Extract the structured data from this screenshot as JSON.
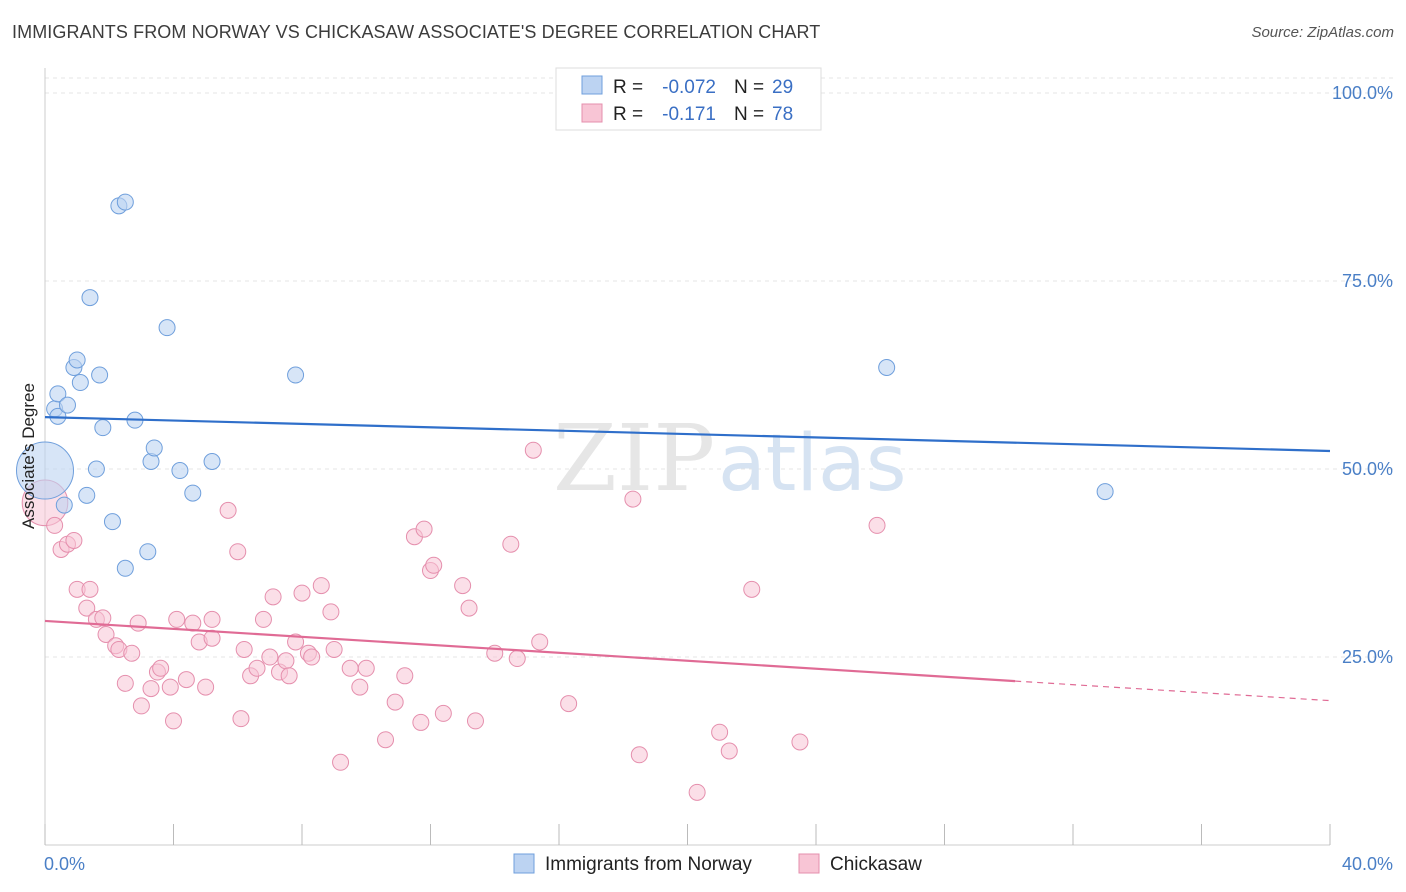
{
  "title": "IMMIGRANTS FROM NORWAY VS CHICKASAW ASSOCIATE'S DEGREE CORRELATION CHART",
  "source": "Source: ZipAtlas.com",
  "colors": {
    "norway_fill": "#bcd3f2",
    "norway_stroke": "#6f9fdc",
    "norway_line": "#2f6fca",
    "chickasaw_fill": "#f8c5d5",
    "chickasaw_stroke": "#e58fad",
    "chickasaw_line": "#e06b95",
    "tick_text": "#4a7fc6",
    "grid": "#e4e4e4"
  },
  "legend": {
    "rows": [
      {
        "r_label": "R =",
        "r_value": "-0.072",
        "n_label": "N =",
        "n_value": "29"
      },
      {
        "r_label": "R =",
        "r_value": "-0.171",
        "n_label": "N =",
        "n_value": "78"
      }
    ]
  },
  "watermark": {
    "zip": "ZIP",
    "atlas": "atlas"
  },
  "chart_data": {
    "type": "scatter",
    "xlabel": "",
    "ylabel": "Associate's Degree",
    "xlim": [
      0,
      40
    ],
    "ylim": [
      0,
      102
    ],
    "x_tick_labels": [
      "0.0%",
      "40.0%"
    ],
    "y_ticks": [
      {
        "value": 25,
        "label": "25.0%"
      },
      {
        "value": 50,
        "label": "50.0%"
      },
      {
        "value": 75,
        "label": "75.0%"
      },
      {
        "value": 100,
        "label": "100.0%"
      }
    ],
    "grid": true,
    "legend_position": "top-center",
    "series": [
      {
        "name": "Immigrants from Norway",
        "trend": {
          "x0": 0,
          "y0": 56.9,
          "x1": 40,
          "y1": 52.4,
          "dashed_from": null
        },
        "points": [
          [
            0.0,
            49.8,
            30
          ],
          [
            0.3,
            58.0,
            10
          ],
          [
            0.4,
            57.0,
            10
          ],
          [
            0.4,
            60.0,
            10
          ],
          [
            0.7,
            58.5,
            10
          ],
          [
            0.6,
            45.2,
            10
          ],
          [
            0.9,
            63.5,
            10
          ],
          [
            1.0,
            64.5,
            10
          ],
          [
            1.1,
            61.5,
            10
          ],
          [
            1.3,
            46.5,
            10
          ],
          [
            1.4,
            72.8,
            10
          ],
          [
            1.6,
            50.0,
            10
          ],
          [
            1.7,
            62.5,
            10
          ],
          [
            1.8,
            55.5,
            10
          ],
          [
            2.1,
            43.0,
            10
          ],
          [
            2.3,
            85.0,
            10
          ],
          [
            2.5,
            85.5,
            10
          ],
          [
            2.5,
            36.8,
            10
          ],
          [
            2.8,
            56.5,
            10
          ],
          [
            3.2,
            39.0,
            10
          ],
          [
            3.3,
            51.0,
            10
          ],
          [
            3.4,
            52.8,
            10
          ],
          [
            3.8,
            68.8,
            10
          ],
          [
            4.2,
            49.8,
            10
          ],
          [
            4.6,
            46.8,
            10
          ],
          [
            5.2,
            51.0,
            10
          ],
          [
            7.8,
            62.5,
            10
          ],
          [
            26.2,
            63.5,
            10
          ],
          [
            33.0,
            47.0,
            10
          ]
        ]
      },
      {
        "name": "Chickasaw",
        "trend": {
          "x0": 0,
          "y0": 29.8,
          "x1": 40,
          "y1": 19.2,
          "dashed_from": 30.2
        },
        "points": [
          [
            0.0,
            45.5,
            24
          ],
          [
            0.3,
            42.5,
            10
          ],
          [
            0.5,
            39.3,
            10
          ],
          [
            0.7,
            40.0,
            10
          ],
          [
            0.9,
            40.5,
            10
          ],
          [
            1.0,
            34.0,
            10
          ],
          [
            1.3,
            31.5,
            10
          ],
          [
            1.4,
            34.0,
            10
          ],
          [
            1.6,
            30.0,
            10
          ],
          [
            1.8,
            30.2,
            10
          ],
          [
            1.9,
            28.0,
            10
          ],
          [
            2.2,
            26.5,
            10
          ],
          [
            2.3,
            26.0,
            10
          ],
          [
            2.5,
            21.5,
            10
          ],
          [
            2.7,
            25.5,
            10
          ],
          [
            2.9,
            29.5,
            10
          ],
          [
            3.0,
            18.5,
            10
          ],
          [
            3.3,
            20.8,
            10
          ],
          [
            3.5,
            23.0,
            10
          ],
          [
            3.6,
            23.5,
            10
          ],
          [
            3.9,
            21.0,
            10
          ],
          [
            4.0,
            16.5,
            10
          ],
          [
            4.1,
            30.0,
            10
          ],
          [
            4.4,
            22.0,
            10
          ],
          [
            4.6,
            29.5,
            10
          ],
          [
            4.8,
            27.0,
            10
          ],
          [
            5.0,
            21.0,
            10
          ],
          [
            5.2,
            27.5,
            10
          ],
          [
            5.2,
            30.0,
            10
          ],
          [
            5.7,
            44.5,
            10
          ],
          [
            6.0,
            39.0,
            10
          ],
          [
            6.1,
            16.8,
            10
          ],
          [
            6.2,
            26.0,
            10
          ],
          [
            6.4,
            22.5,
            10
          ],
          [
            6.6,
            23.5,
            10
          ],
          [
            6.8,
            30.0,
            10
          ],
          [
            7.0,
            25.0,
            10
          ],
          [
            7.1,
            33.0,
            10
          ],
          [
            7.3,
            23.0,
            10
          ],
          [
            7.5,
            24.5,
            10
          ],
          [
            7.6,
            22.5,
            10
          ],
          [
            7.8,
            27.0,
            10
          ],
          [
            8.0,
            33.5,
            10
          ],
          [
            8.2,
            25.5,
            10
          ],
          [
            8.3,
            25.0,
            10
          ],
          [
            8.6,
            34.5,
            10
          ],
          [
            8.9,
            31.0,
            10
          ],
          [
            9.0,
            26.0,
            10
          ],
          [
            9.2,
            11.0,
            10
          ],
          [
            9.5,
            23.5,
            10
          ],
          [
            9.8,
            21.0,
            10
          ],
          [
            10.0,
            23.5,
            10
          ],
          [
            10.6,
            14.0,
            10
          ],
          [
            10.9,
            19.0,
            10
          ],
          [
            11.2,
            22.5,
            10
          ],
          [
            11.5,
            41.0,
            10
          ],
          [
            11.7,
            16.3,
            10
          ],
          [
            11.8,
            42.0,
            10
          ],
          [
            12.0,
            36.5,
            10
          ],
          [
            12.1,
            37.2,
            10
          ],
          [
            12.4,
            17.5,
            10
          ],
          [
            13.0,
            34.5,
            10
          ],
          [
            13.2,
            31.5,
            10
          ],
          [
            13.4,
            16.5,
            10
          ],
          [
            14.0,
            25.5,
            10
          ],
          [
            14.5,
            40.0,
            10
          ],
          [
            14.7,
            24.8,
            10
          ],
          [
            15.2,
            52.5,
            10
          ],
          [
            15.4,
            27.0,
            10
          ],
          [
            16.3,
            18.8,
            10
          ],
          [
            18.3,
            46.0,
            10
          ],
          [
            18.5,
            12.0,
            10
          ],
          [
            20.3,
            7.0,
            10
          ],
          [
            21.0,
            15.0,
            10
          ],
          [
            21.3,
            12.5,
            10
          ],
          [
            22.0,
            34.0,
            10
          ],
          [
            23.5,
            13.7,
            10
          ],
          [
            25.9,
            42.5,
            10
          ]
        ]
      }
    ]
  }
}
